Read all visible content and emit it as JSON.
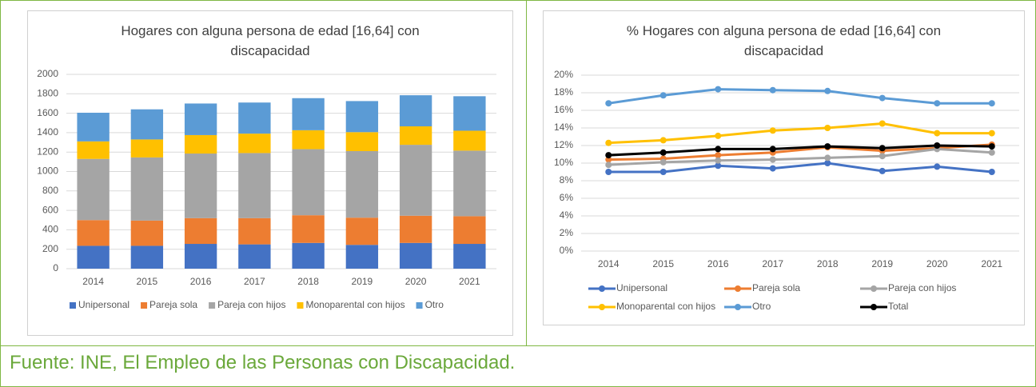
{
  "chart_data": [
    {
      "type": "bar",
      "stacked": true,
      "title": "Hogares con alguna persona de edad [16,64] con discapacidad",
      "categories": [
        "2014",
        "2015",
        "2016",
        "2017",
        "2018",
        "2019",
        "2020",
        "2021"
      ],
      "series": [
        {
          "name": "Unipersonal",
          "color": "#4472c4",
          "values": [
            235,
            235,
            255,
            250,
            265,
            245,
            265,
            255
          ]
        },
        {
          "name": "Pareja sola",
          "color": "#ed7d31",
          "values": [
            265,
            260,
            265,
            270,
            285,
            280,
            280,
            285
          ]
        },
        {
          "name": "Pareja con hijos",
          "color": "#a5a5a5",
          "values": [
            630,
            650,
            665,
            670,
            680,
            685,
            730,
            675
          ]
        },
        {
          "name": "Monoparental con hijos",
          "color": "#ffc000",
          "values": [
            180,
            185,
            190,
            200,
            195,
            195,
            190,
            205
          ]
        },
        {
          "name": "Otro",
          "color": "#5b9bd5",
          "values": [
            295,
            310,
            325,
            320,
            330,
            320,
            320,
            355
          ]
        }
      ],
      "ylim": [
        0,
        2000
      ],
      "yticks": [
        0,
        200,
        400,
        600,
        800,
        1000,
        1200,
        1400,
        1600,
        1800,
        2000
      ],
      "grid": true,
      "legend": "bottom"
    },
    {
      "type": "line",
      "title": "% Hogares con alguna persona de edad [16,64] con discapacidad",
      "categories": [
        "2014",
        "2015",
        "2016",
        "2017",
        "2018",
        "2019",
        "2020",
        "2021"
      ],
      "series": [
        {
          "name": "Unipersonal",
          "color": "#4472c4",
          "values": [
            9.0,
            9.0,
            9.7,
            9.4,
            10.0,
            9.1,
            9.6,
            9.0
          ]
        },
        {
          "name": "Pareja sola",
          "color": "#ed7d31",
          "values": [
            10.4,
            10.5,
            10.9,
            11.2,
            11.8,
            11.4,
            11.7,
            12.1
          ]
        },
        {
          "name": "Pareja con hijos",
          "color": "#a5a5a5",
          "values": [
            9.8,
            10.1,
            10.3,
            10.4,
            10.6,
            10.8,
            11.6,
            11.2
          ]
        },
        {
          "name": "Monoparental con hijos",
          "color": "#ffc000",
          "values": [
            12.3,
            12.6,
            13.1,
            13.7,
            14.0,
            14.5,
            13.4,
            13.4
          ]
        },
        {
          "name": "Otro",
          "color": "#5b9bd5",
          "values": [
            16.8,
            17.7,
            18.4,
            18.3,
            18.2,
            17.4,
            16.8,
            16.8
          ]
        },
        {
          "name": "Total",
          "color": "#000000",
          "values": [
            10.9,
            11.2,
            11.6,
            11.6,
            11.9,
            11.7,
            12.0,
            11.9
          ]
        }
      ],
      "ylim": [
        0,
        20
      ],
      "yticks": [
        {
          "value": 0,
          "label": "0%"
        },
        {
          "value": 2,
          "label": "2%"
        },
        {
          "value": 4,
          "label": "4%"
        },
        {
          "value": 6,
          "label": "6%"
        },
        {
          "value": 8,
          "label": "8%"
        },
        {
          "value": 10,
          "label": "10%"
        },
        {
          "value": 12,
          "label": "12%"
        },
        {
          "value": 14,
          "label": "14%"
        },
        {
          "value": 16,
          "label": "16%"
        },
        {
          "value": 18,
          "label": "18%"
        },
        {
          "value": 20,
          "label": "20%"
        }
      ],
      "grid": true,
      "legend": "bottom"
    }
  ],
  "source": "Fuente: INE, El Empleo de las Personas con Discapacidad."
}
